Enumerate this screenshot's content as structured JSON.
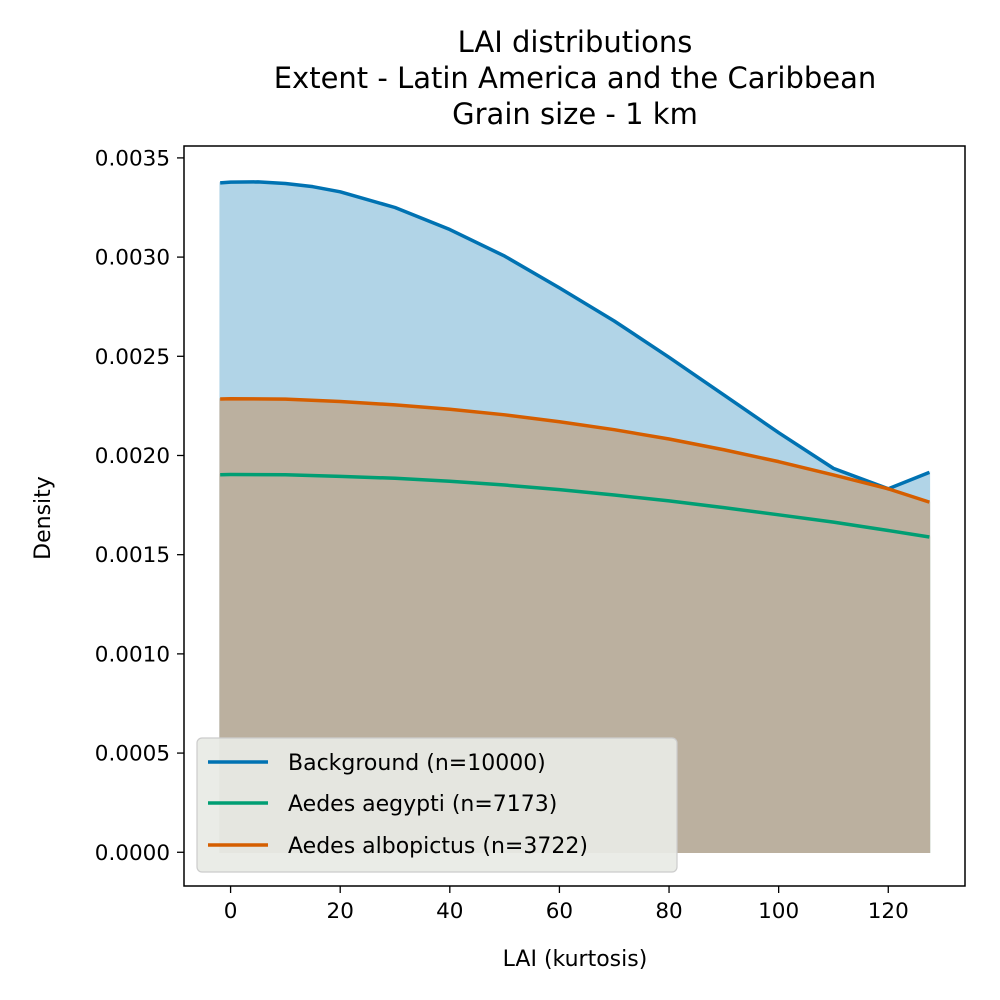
{
  "chart_data": {
    "type": "area",
    "title": [
      "LAI distributions",
      "Extent - Latin America and the Caribbean",
      "Grain size - 1 km"
    ],
    "xlabel": "LAI (kurtosis)",
    "ylabel": "Density",
    "xlim": [
      -8.5,
      134
    ],
    "ylim": [
      -0.00017,
      0.00356
    ],
    "xticks": [
      0,
      20,
      40,
      60,
      80,
      100,
      120
    ],
    "yticks": [
      0.0,
      0.0005,
      0.001,
      0.0015,
      0.002,
      0.0025,
      0.003,
      0.0035
    ],
    "xtick_labels": [
      "0",
      "20",
      "40",
      "60",
      "80",
      "100",
      "120"
    ],
    "ytick_labels": [
      "0.0000",
      "0.0005",
      "0.0010",
      "0.0015",
      "0.0020",
      "0.0025",
      "0.0030",
      "0.0035"
    ],
    "grid": false,
    "legend_position": "lower-left",
    "series": [
      {
        "name": "Background (n=10000)",
        "color": "#0072b2",
        "fill": "#b1d4e7",
        "x": [
          -1.9,
          0,
          5,
          10,
          15,
          20,
          30,
          40,
          50,
          60,
          70,
          80,
          90,
          100,
          110,
          120,
          127.5
        ],
        "values": [
          0.003374,
          0.003378,
          0.003379,
          0.003371,
          0.003355,
          0.003329,
          0.00325,
          0.003139,
          0.003005,
          0.002845,
          0.002678,
          0.002495,
          0.002305,
          0.002115,
          0.001935,
          0.001832,
          0.001915
        ]
      },
      {
        "name": "Aedes aegypti (n=7173)",
        "color": "#009e73",
        "fill": "#98a888",
        "x": [
          -1.9,
          0,
          10,
          20,
          30,
          40,
          50,
          60,
          70,
          80,
          90,
          100,
          110,
          120,
          127.5
        ],
        "values": [
          0.001903,
          0.001904,
          0.001903,
          0.001895,
          0.001885,
          0.00187,
          0.001851,
          0.001828,
          0.001801,
          0.001771,
          0.001737,
          0.001701,
          0.001664,
          0.001622,
          0.001589
        ]
      },
      {
        "name": "Aedes albopictus (n=3722)",
        "color": "#d55e00",
        "fill": "#bbb09f",
        "x": [
          -1.9,
          0,
          10,
          20,
          30,
          40,
          50,
          60,
          70,
          80,
          90,
          100,
          110,
          120,
          127.5
        ],
        "values": [
          0.002285,
          0.002286,
          0.002284,
          0.002272,
          0.002255,
          0.002233,
          0.002205,
          0.00217,
          0.00213,
          0.002083,
          0.002029,
          0.001969,
          0.001902,
          0.001832,
          0.001765
        ]
      }
    ]
  }
}
